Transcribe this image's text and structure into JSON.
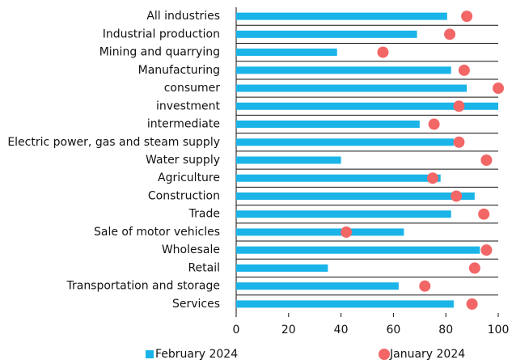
{
  "chart_data": {
    "type": "bar",
    "orientation": "horizontal",
    "categories": [
      "All industries",
      "Industrial production",
      "Mining and quarrying",
      "Manufacturing",
      "consumer",
      "investment",
      "intermediate",
      "Electric power, gas and steam supply",
      "Water supply",
      "Agriculture",
      "Construction",
      "Trade",
      "Sale of motor vehicles",
      "Wholesale",
      "Retail",
      "Transportation and storage",
      "Services"
    ],
    "series": [
      {
        "name": "February 2024",
        "color": "#1ab4e8",
        "style": "bar",
        "values": [
          80.5,
          69,
          38.5,
          82,
          88,
          100,
          70,
          83,
          40,
          78,
          91,
          82,
          64,
          93,
          35,
          62,
          83
        ]
      },
      {
        "name": "January 2024",
        "color": "#f26666",
        "style": "dot",
        "values": [
          88,
          81.5,
          56,
          87,
          100,
          85,
          75.5,
          85,
          95.5,
          75,
          84,
          94.5,
          42,
          95.5,
          91,
          72,
          90
        ]
      }
    ],
    "xlim": [
      0,
      100
    ],
    "xticks": [
      0,
      20,
      40,
      60,
      80,
      100
    ]
  }
}
